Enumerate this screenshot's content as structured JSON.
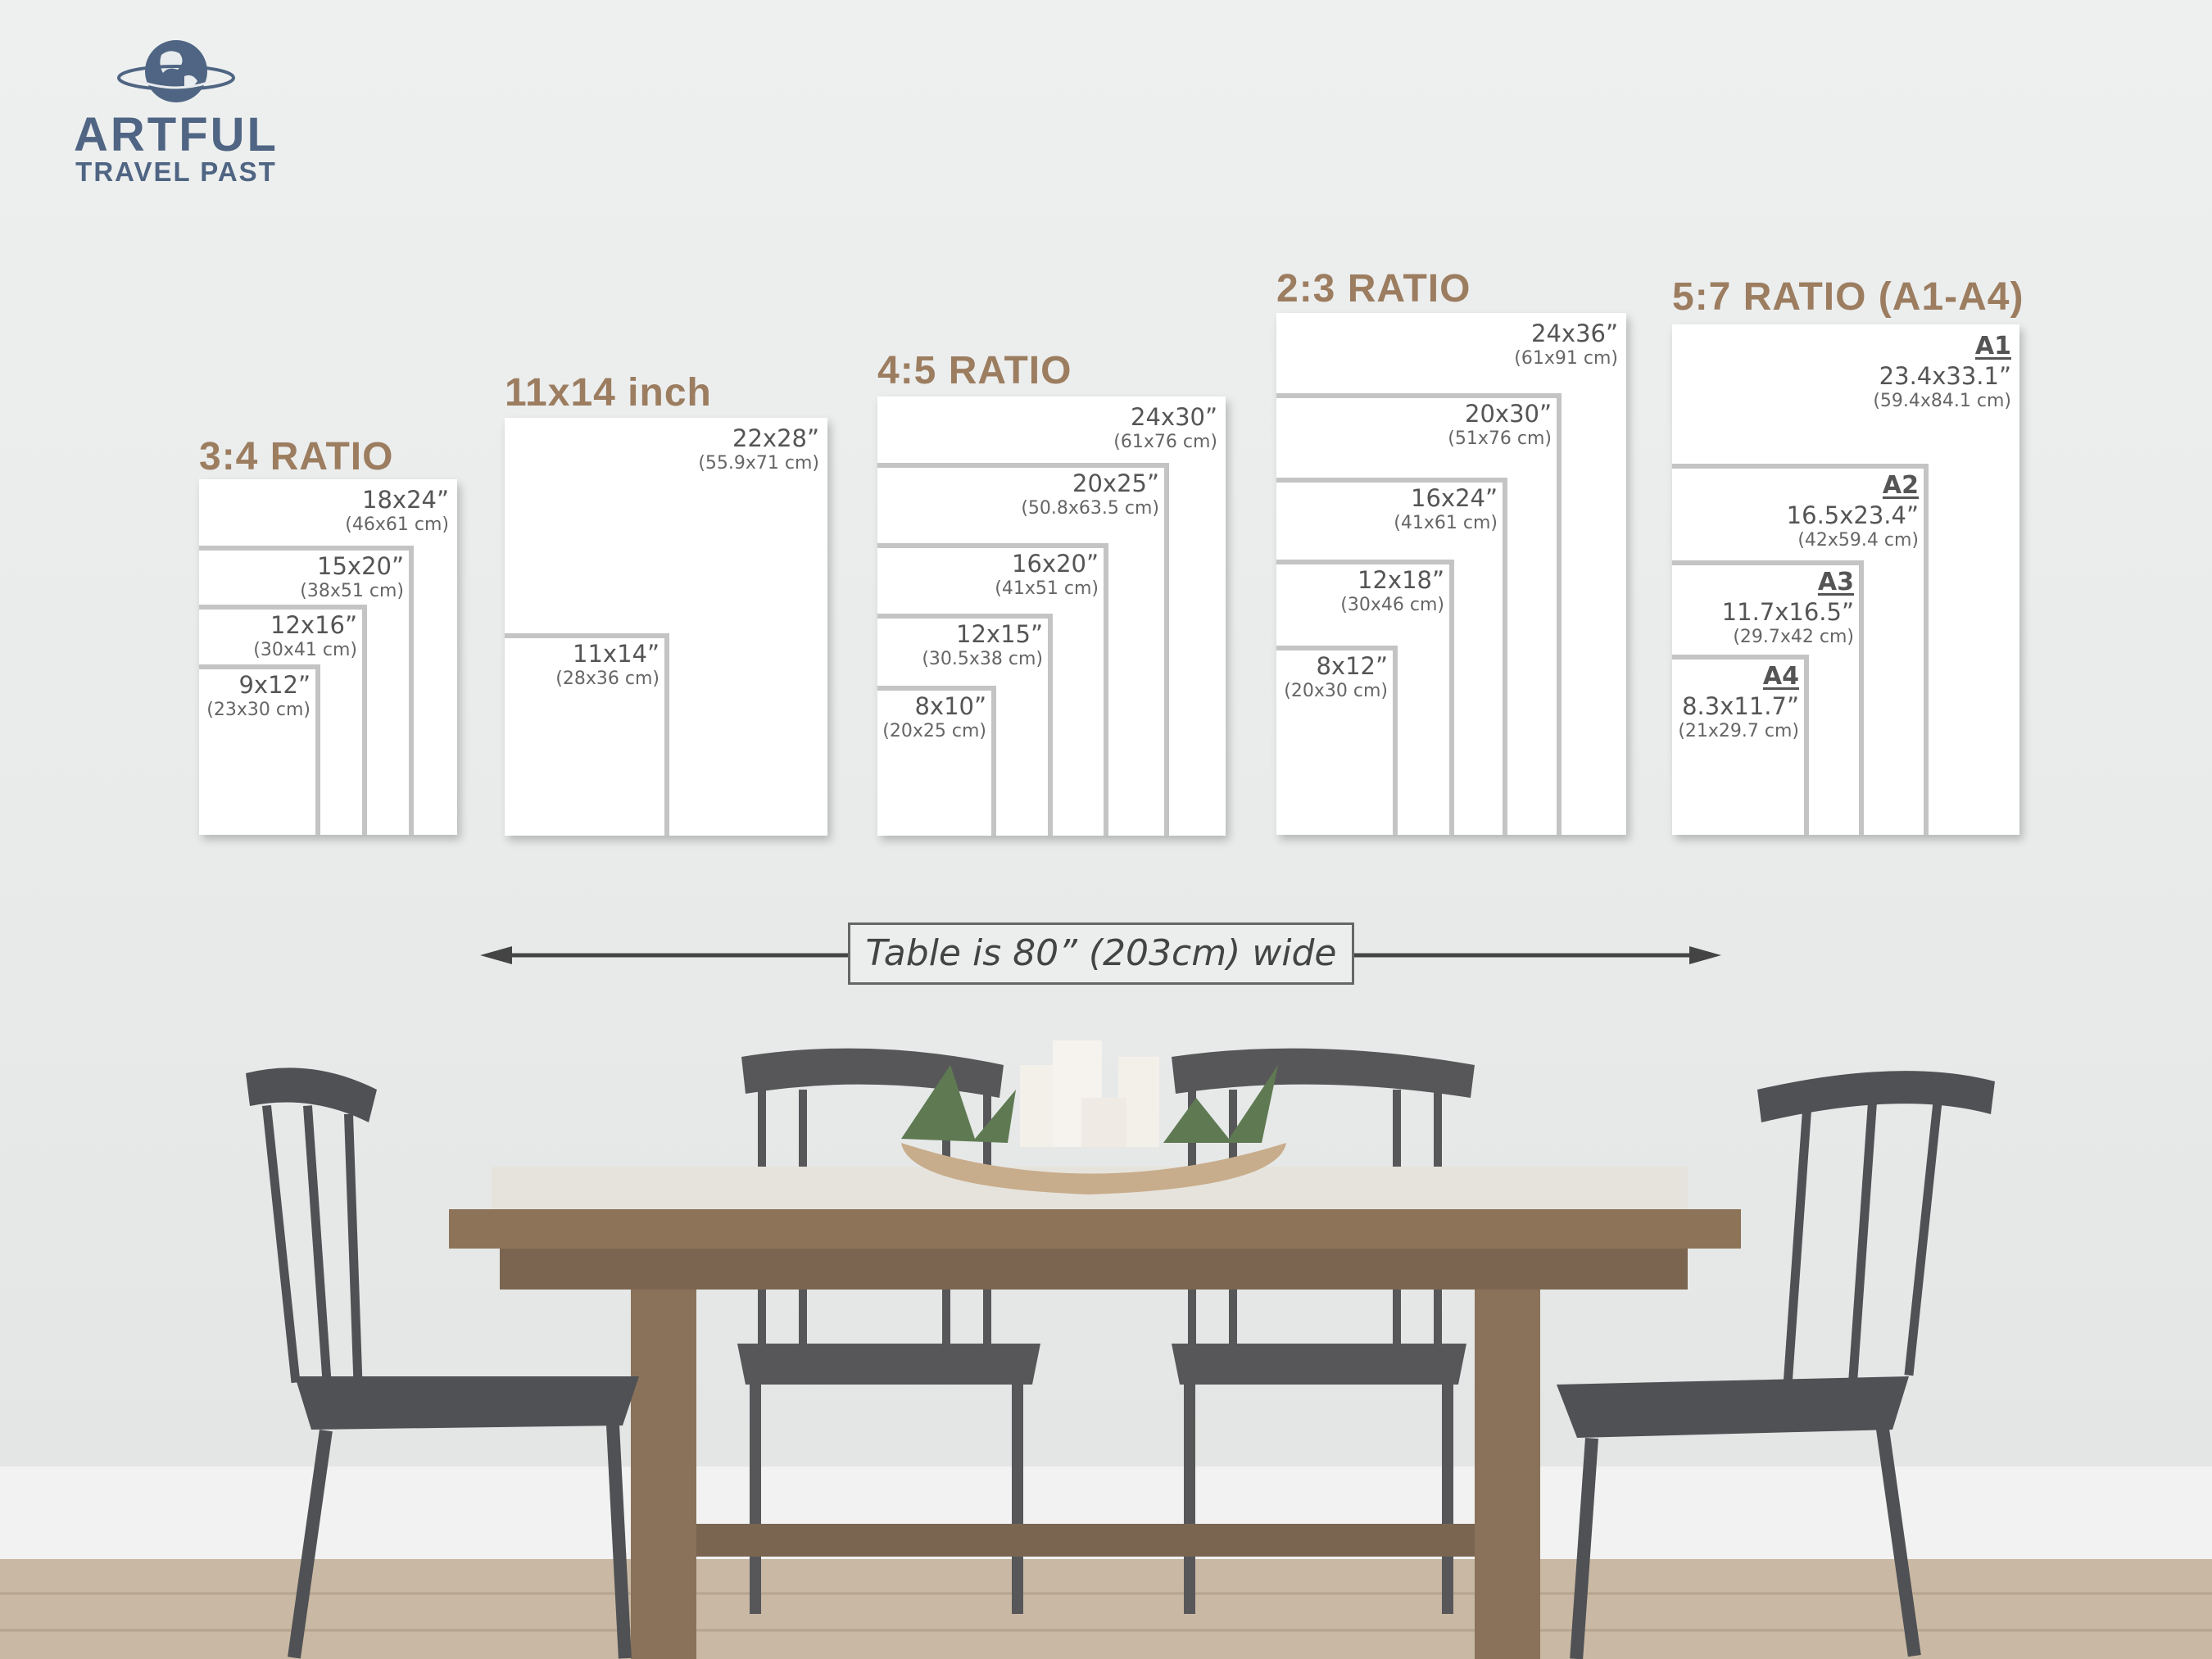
{
  "logo": {
    "line1": "ARTFUL",
    "line2": "TRAVEL PAST",
    "icon": "globe-icon",
    "color": "#4f6583"
  },
  "accent_color": "#9c7d60",
  "groups": [
    {
      "title": "3:4 RATIO",
      "sizes": [
        {
          "inches": "18x24”",
          "cm": "(46x61 cm)"
        },
        {
          "inches": "15x20”",
          "cm": "(38x51 cm)"
        },
        {
          "inches": "12x16”",
          "cm": "(30x41 cm)"
        },
        {
          "inches": "9x12”",
          "cm": "(23x30 cm)"
        }
      ]
    },
    {
      "title": "11x14 inch",
      "sizes": [
        {
          "inches": "22x28”",
          "cm": "(55.9x71 cm)"
        },
        {
          "inches": "11x14”",
          "cm": "(28x36 cm)"
        }
      ]
    },
    {
      "title": "4:5 RATIO",
      "sizes": [
        {
          "inches": "24x30”",
          "cm": "(61x76 cm)"
        },
        {
          "inches": "20x25”",
          "cm": "(50.8x63.5 cm)"
        },
        {
          "inches": "16x20”",
          "cm": "(41x51 cm)"
        },
        {
          "inches": "12x15”",
          "cm": "(30.5x38 cm)"
        },
        {
          "inches": "8x10”",
          "cm": "(20x25 cm)"
        }
      ]
    },
    {
      "title": "2:3 RATIO",
      "sizes": [
        {
          "inches": "24x36”",
          "cm": "(61x91 cm)"
        },
        {
          "inches": "20x30”",
          "cm": "(51x76 cm)"
        },
        {
          "inches": "16x24”",
          "cm": "(41x61 cm)"
        },
        {
          "inches": "12x18”",
          "cm": "(30x46 cm)"
        },
        {
          "inches": "8x12”",
          "cm": "(20x30 cm)"
        }
      ]
    },
    {
      "title": "5:7 RATIO (A1-A4)",
      "sizes": [
        {
          "label": "A1",
          "inches": "23.4x33.1”",
          "cm": "(59.4x84.1 cm)"
        },
        {
          "label": "A2",
          "inches": "16.5x23.4”",
          "cm": "(42x59.4 cm)"
        },
        {
          "label": "A3",
          "inches": "11.7x16.5”",
          "cm": "(29.7x42 cm)"
        },
        {
          "label": "A4",
          "inches": "8.3x11.7”",
          "cm": "(21x29.7 cm)"
        }
      ]
    }
  ],
  "table_note": "Table is 80” (203cm) wide"
}
